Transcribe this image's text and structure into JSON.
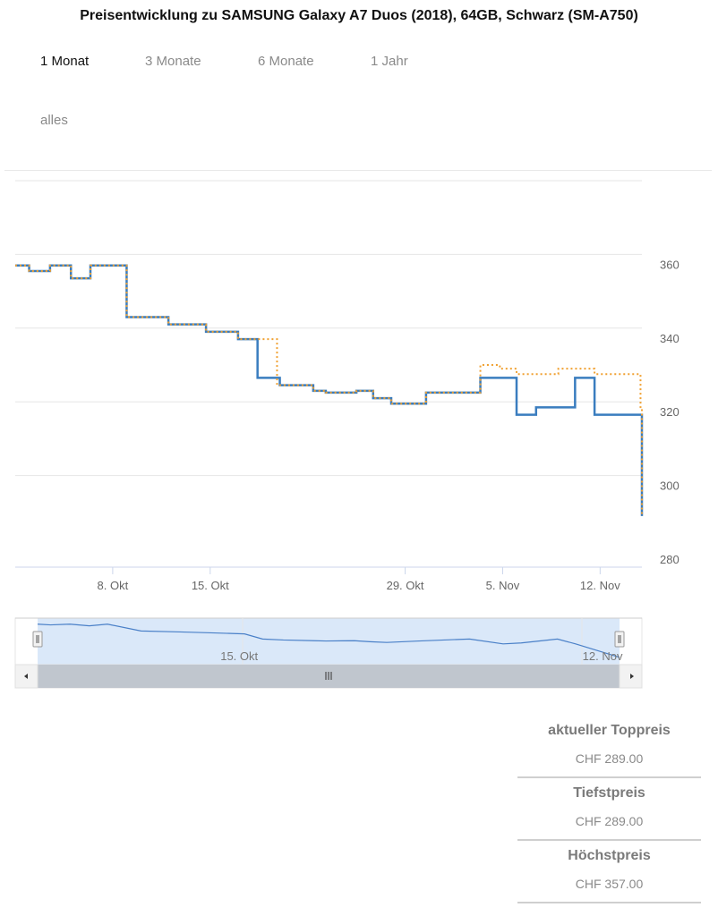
{
  "title": "Preisentwicklung zu SAMSUNG Galaxy A7 Duos (2018), 64GB, Schwarz (SM-A750)",
  "ranges": [
    {
      "label": "1 Monat",
      "active": true
    },
    {
      "label": "3 Monate",
      "active": false
    },
    {
      "label": "6 Monate",
      "active": false
    },
    {
      "label": "1 Jahr",
      "active": false
    },
    {
      "label": "alles",
      "active": false
    }
  ],
  "stats": [
    {
      "label": "aktueller Toppreis",
      "value": "CHF 289.00"
    },
    {
      "label": "Tiefstpreis",
      "value": "CHF 289.00"
    },
    {
      "label": "Höchstpreis",
      "value": "CHF 357.00"
    }
  ],
  "colors": {
    "series_blue": "#3a7dbf",
    "series_orange": "#f0a030",
    "navigator_fill": "#d6e6f8"
  },
  "chart_data": {
    "type": "line",
    "step": true,
    "xaxis": {
      "type": "date",
      "range": [
        "2018-10-01",
        "2018-11-15"
      ],
      "ticks": [
        {
          "date": "2018-10-08",
          "label": "8. Okt"
        },
        {
          "date": "2018-10-15",
          "label": "15. Okt"
        },
        {
          "date": "2018-10-29",
          "label": "29. Okt"
        },
        {
          "date": "2018-11-05",
          "label": "5. Nov"
        },
        {
          "date": "2018-11-12",
          "label": "12. Nov"
        }
      ]
    },
    "yaxis": {
      "range": [
        280,
        380
      ],
      "ticks": [
        280,
        300,
        320,
        340,
        360
      ],
      "side": "right"
    },
    "grid": true,
    "series": [
      {
        "color": "#3a7dbf",
        "style": "solid",
        "points": [
          [
            "2018-10-01",
            357
          ],
          [
            "2018-10-02",
            355.5
          ],
          [
            "2018-10-03.5",
            357
          ],
          [
            "2018-10-05",
            353.5
          ],
          [
            "2018-10-06.4",
            357
          ],
          [
            "2018-10-09",
            343
          ],
          [
            "2018-10-12",
            341
          ],
          [
            "2018-10-14.7",
            339
          ],
          [
            "2018-10-17",
            337
          ],
          [
            "2018-10-18.4",
            326.5
          ],
          [
            "2018-10-20",
            324.5
          ],
          [
            "2018-10-22.4",
            323
          ],
          [
            "2018-10-23.3",
            322.5
          ],
          [
            "2018-10-25.5",
            323
          ],
          [
            "2018-10-26.7",
            321
          ],
          [
            "2018-10-28",
            319.5
          ],
          [
            "2018-10-30.5",
            322.5
          ],
          [
            "2018-11-03.4",
            326.5
          ],
          [
            "2018-11-06",
            316.5
          ],
          [
            "2018-11-07.4",
            318.5
          ],
          [
            "2018-11-10.2",
            326.5
          ],
          [
            "2018-11-11.6",
            316.5
          ],
          [
            "2018-11-15",
            289
          ]
        ]
      },
      {
        "color": "#f0a030",
        "style": "dotted",
        "points": [
          [
            "2018-10-01",
            357
          ],
          [
            "2018-10-02",
            355.5
          ],
          [
            "2018-10-03.5",
            357
          ],
          [
            "2018-10-05",
            353.5
          ],
          [
            "2018-10-06.4",
            357
          ],
          [
            "2018-10-09",
            343
          ],
          [
            "2018-10-12",
            341
          ],
          [
            "2018-10-14.7",
            339
          ],
          [
            "2018-10-17",
            337
          ],
          [
            "2018-10-18.4",
            337
          ],
          [
            "2018-10-19.8",
            324.5
          ],
          [
            "2018-10-22.4",
            323
          ],
          [
            "2018-10-23.3",
            322.5
          ],
          [
            "2018-10-25.5",
            323
          ],
          [
            "2018-10-26.7",
            321
          ],
          [
            "2018-10-28",
            319.5
          ],
          [
            "2018-10-30.5",
            322.5
          ],
          [
            "2018-11-03.4",
            330
          ],
          [
            "2018-11-04.8",
            329
          ],
          [
            "2018-11-06",
            327.5
          ],
          [
            "2018-11-09",
            329
          ],
          [
            "2018-11-11.6",
            327.5
          ],
          [
            "2018-11-14.9",
            318
          ],
          [
            "2018-11-15",
            289
          ]
        ]
      }
    ],
    "navigator": {
      "tick_labels": [
        {
          "date": "2018-10-15",
          "label": "15. Okt"
        },
        {
          "date": "2018-11-12",
          "label": "12. Nov"
        }
      ]
    }
  }
}
